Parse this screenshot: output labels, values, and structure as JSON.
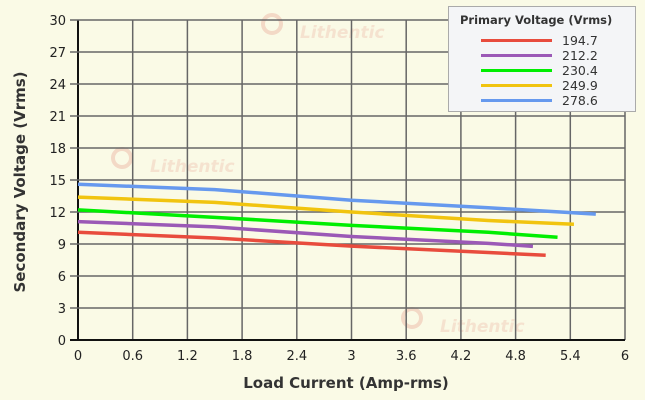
{
  "chart_data": {
    "type": "line",
    "title": "",
    "xlabel": "Load Current (Amp-rms)",
    "ylabel": "Secondary Voltage (Vrms)",
    "xlim": [
      0,
      6
    ],
    "ylim": [
      0,
      30
    ],
    "xticks": [
      "0",
      "0.6",
      "1.2",
      "1.8",
      "2.4",
      "3",
      "3.6",
      "4.2",
      "4.8",
      "5.4",
      "6"
    ],
    "yticks": [
      "0",
      "3",
      "6",
      "9",
      "12",
      "15",
      "18",
      "21",
      "24",
      "27",
      "30"
    ],
    "grid": true,
    "legend_title": "Primary Voltage (Vrms)",
    "legend_position": "top-right",
    "series": [
      {
        "name": "194.7",
        "color": "#e84c3d",
        "x": [
          0,
          1.5,
          3,
          4.5,
          5.13
        ],
        "y": [
          10.1,
          9.56,
          8.8,
          8.2,
          7.94
        ]
      },
      {
        "name": "212.2",
        "color": "#9b59b6",
        "x": [
          0,
          1.5,
          3,
          4.5,
          4.99
        ],
        "y": [
          11.1,
          10.6,
          9.7,
          9.06,
          8.78
        ]
      },
      {
        "name": "230.4",
        "color": "#00ee00",
        "x": [
          0,
          1.5,
          3,
          4.5,
          5.26
        ],
        "y": [
          12.2,
          11.5,
          10.75,
          10.1,
          9.63
        ]
      },
      {
        "name": "249.9",
        "color": "#f1c40f",
        "x": [
          0,
          1.5,
          3,
          4.5,
          5.44
        ],
        "y": [
          13.4,
          12.9,
          12.0,
          11.2,
          10.85
        ]
      },
      {
        "name": "278.6",
        "color": "#6699ee",
        "x": [
          0,
          1.5,
          3,
          4.5,
          5.68
        ],
        "y": [
          14.6,
          14.1,
          13.1,
          12.4,
          11.8
        ]
      }
    ]
  },
  "watermark": "Lithentic"
}
